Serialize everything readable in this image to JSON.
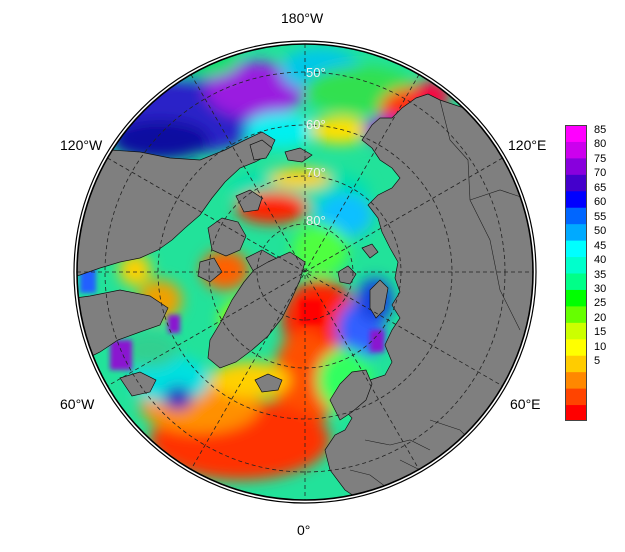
{
  "map": {
    "projection": "north-polar-stereographic",
    "land_color": "#7f7f7f",
    "lon_labels": {
      "top": "180°W",
      "bottom": "0°",
      "upper_left": "120°W",
      "upper_right": "120°E",
      "lower_left": "60°W",
      "lower_right": "60°E"
    },
    "lat_labels": [
      "50°",
      "60°",
      "70°",
      "80°"
    ]
  },
  "colorbar": {
    "ticks": [
      "85",
      "80",
      "75",
      "70",
      "65",
      "60",
      "55",
      "50",
      "45",
      "40",
      "35",
      "30",
      "25",
      "20",
      "15",
      "10",
      "5"
    ],
    "colors": [
      "#ff0000",
      "#ff4400",
      "#ff8800",
      "#ffcc00",
      "#ffff00",
      "#ccff00",
      "#66ff00",
      "#00ff00",
      "#00ff88",
      "#00ffcc",
      "#00ffff",
      "#00aaff",
      "#0066ff",
      "#0000ff",
      "#4400cc",
      "#8800dd",
      "#cc00ee",
      "#ff00ff"
    ]
  }
}
